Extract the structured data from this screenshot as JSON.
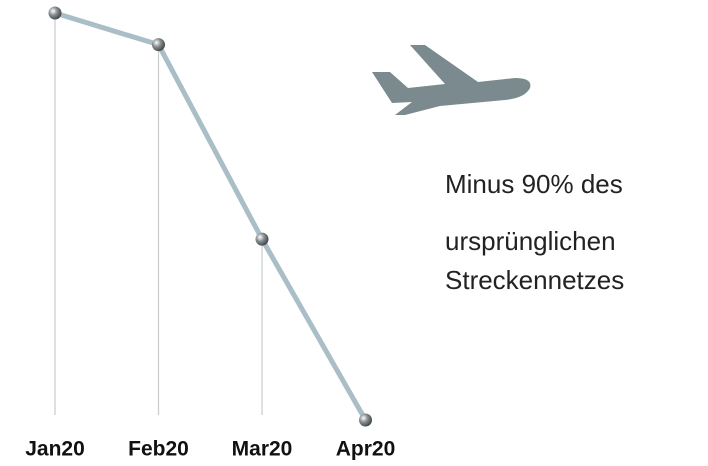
{
  "chart_data": {
    "type": "line",
    "categories": [
      "Jan20",
      "Feb20",
      "Mar20",
      "Apr20"
    ],
    "values": [
      100,
      93,
      50,
      10
    ],
    "color": "#a9bec6",
    "ylim": [
      10,
      100
    ],
    "annotation": [
      "Minus 90% des",
      "ursprünglichen",
      "Streckennetzes"
    ]
  }
}
